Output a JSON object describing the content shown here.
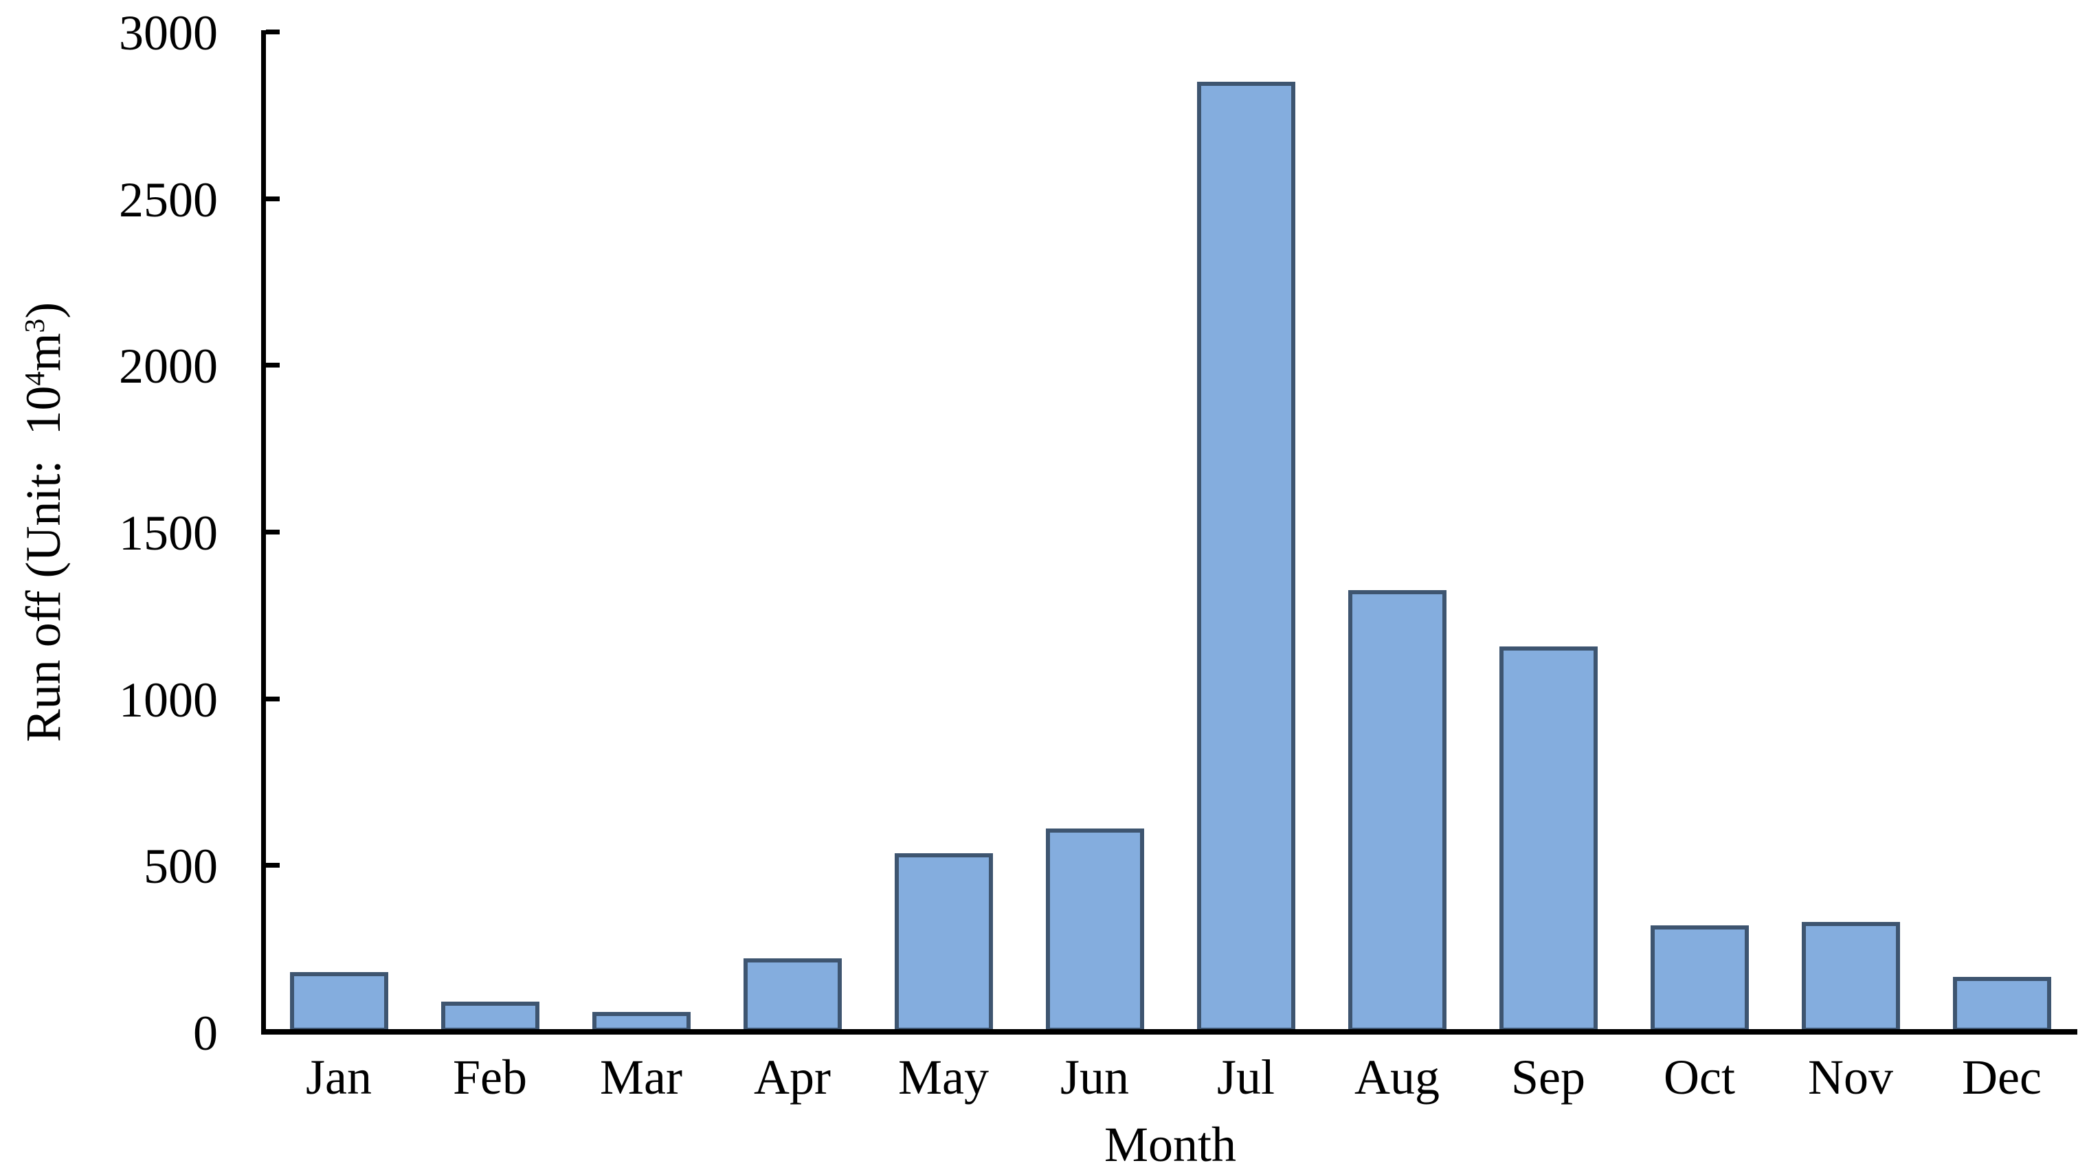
{
  "figure": {
    "background": "#ffffff"
  },
  "y_axis": {
    "title_parts": {
      "prefix": "Run off (Unit:  10",
      "sup1": "4",
      "mid": "m",
      "sup2": "3",
      "suffix": ")"
    }
  },
  "x_axis": {
    "title": "Month"
  },
  "chart_data": {
    "type": "bar",
    "title": "",
    "categories": [
      "Jan",
      "Feb",
      "Mar",
      "Apr",
      "May",
      "Jun",
      "Jul",
      "Aug",
      "Sep",
      "Oct",
      "Nov",
      "Dec"
    ],
    "values": [
      180,
      90,
      60,
      220,
      535,
      610,
      2850,
      1325,
      1155,
      320,
      330,
      165
    ],
    "series_name": "Run off",
    "xlabel": "Month",
    "ylabel": "Run off (Unit: 10⁴m³)",
    "ylim": [
      0,
      3000
    ],
    "yticks": [
      0,
      500,
      1000,
      1500,
      2000,
      2500,
      3000
    ],
    "grid": false,
    "legend": false,
    "bar_fill": "#84ADDE",
    "bar_border": "#3E5570",
    "axis_color": "#000000",
    "tick_direction": "in"
  }
}
